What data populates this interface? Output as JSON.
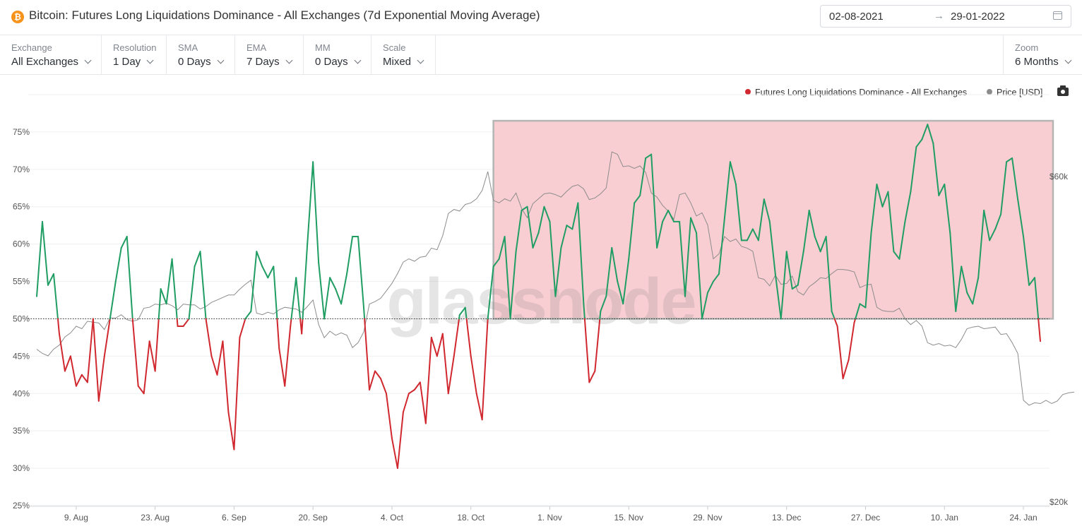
{
  "header": {
    "title": "Bitcoin: Futures Long Liquidations Dominance - All Exchanges (7d Exponential Moving Average)",
    "icon": "bitcoin-icon",
    "date_from": "02-08-2021",
    "date_arrow": "→",
    "date_to": "29-01-2022"
  },
  "toolbar": {
    "exchange": {
      "label": "Exchange",
      "value": "All Exchanges"
    },
    "resolution": {
      "label": "Resolution",
      "value": "1 Day"
    },
    "sma": {
      "label": "SMA",
      "value": "0 Days"
    },
    "ema": {
      "label": "EMA",
      "value": "7 Days"
    },
    "mm": {
      "label": "MM",
      "value": "0 Days"
    },
    "scale": {
      "label": "Scale",
      "value": "Mixed"
    },
    "zoom": {
      "label": "Zoom",
      "value": "6 Months"
    }
  },
  "legend": {
    "series1": "Futures Long Liquidations Dominance - All Exchanges",
    "series2": "Price [USD]"
  },
  "watermark": "glassnode",
  "colors": {
    "above": "#1f9d63",
    "below": "#d0282e",
    "price": "#8c8c8c",
    "highlight_fill": "#f8c9cd",
    "highlight_stroke": "#b5b5b5",
    "legend_red": "#d0282e",
    "legend_gray": "#8c8c8c"
  },
  "chart_data": {
    "type": "line",
    "start_date": "2021-08-02",
    "interval": "1 day",
    "threshold": 50,
    "y_left": {
      "min": 25,
      "max": 80,
      "ticks": [
        "25%",
        "30%",
        "35%",
        "40%",
        "45%",
        "50%",
        "55%",
        "60%",
        "65%",
        "70%",
        "75%"
      ]
    },
    "y_right": {
      "ticks": [
        "$20k",
        "$60k"
      ]
    },
    "x_ticks": [
      "9. Aug",
      "23. Aug",
      "6. Sep",
      "20. Sep",
      "4. Oct",
      "18. Oct",
      "1. Nov",
      "15. Nov",
      "29. Nov",
      "13. Dec",
      "27. Dec",
      "10. Jan",
      "24. Jan"
    ],
    "highlight_region": {
      "x_from": "2021-10-22",
      "x_to": "2022-01-28",
      "y_from": 50,
      "y_to": 76.5
    },
    "series": [
      {
        "name": "Futures Long Liquidations Dominance - All Exchanges",
        "values": [
          53,
          63,
          54.5,
          56,
          48,
          43,
          45,
          41,
          42.5,
          41.5,
          50,
          39,
          45,
          50,
          55,
          59.5,
          61,
          50,
          41,
          40,
          47,
          43,
          54,
          52,
          58,
          49,
          49,
          50,
          57,
          59,
          50,
          45,
          42.5,
          47,
          37.5,
          32.5,
          47.5,
          50,
          51,
          59,
          57,
          55.5,
          57,
          46,
          41,
          49,
          55.5,
          48,
          60,
          71,
          57.5,
          50,
          55.5,
          54,
          52,
          56,
          61,
          61,
          51.5,
          40.5,
          43,
          42,
          40,
          34,
          30,
          37.5,
          40,
          40.5,
          41.5,
          36,
          47.5,
          45,
          48,
          40,
          45,
          50.5,
          51.5,
          45,
          40,
          36.5,
          50,
          57,
          58,
          61,
          50,
          59,
          64.5,
          65,
          59.5,
          61.5,
          65,
          63,
          53,
          59.5,
          62.5,
          62,
          65.5,
          52,
          41.5,
          43,
          51,
          53,
          59.5,
          55,
          52,
          58,
          65.5,
          66.5,
          71.5,
          72,
          59.5,
          63,
          64.5,
          63,
          63,
          53,
          63.5,
          61.5,
          50,
          53.5,
          55,
          56,
          63.5,
          71,
          68,
          60.5,
          60.5,
          62,
          60.5,
          66,
          63,
          56,
          50,
          59,
          54,
          54.5,
          59,
          64.5,
          61,
          59,
          61,
          51,
          49,
          42,
          44.5,
          49.5,
          52,
          51.5,
          61.5,
          68,
          65,
          67,
          59,
          58,
          63,
          67,
          73,
          74,
          76,
          73.5,
          66.5,
          68,
          61.5,
          51,
          57,
          53.5,
          52,
          55.5,
          64.5,
          60.5,
          62,
          64,
          71,
          71.5,
          66,
          61,
          54.5,
          55.5,
          47
        ]
      },
      {
        "name": "Price [USD]",
        "values": [
          39000,
          38500,
          38200,
          39000,
          39500,
          40500,
          41000,
          41800,
          41500,
          42400,
          42300,
          42200,
          41400,
          42800,
          42800,
          43200,
          42600,
          42400,
          42600,
          44000,
          44100,
          44500,
          44400,
          44600,
          44300,
          43800,
          44500,
          44400,
          44400,
          43900,
          44200,
          44700,
          45000,
          45300,
          45600,
          45600,
          46300,
          46900,
          47400,
          43400,
          43200,
          43500,
          43300,
          43800,
          44100,
          44000,
          43900,
          43500,
          44200,
          45000,
          42000,
          40400,
          41200,
          40700,
          41000,
          40700,
          39200,
          39800,
          41100,
          44500,
          44800,
          45200,
          46100,
          47000,
          48200,
          49600,
          50000,
          49700,
          50200,
          50300,
          51300,
          51100,
          52800,
          55500,
          56000,
          55800,
          56600,
          56800,
          57300,
          58300,
          60600,
          57100,
          56800,
          57300,
          57000,
          58000,
          56100,
          55000,
          56700,
          57300,
          57900,
          58000,
          57800,
          57500,
          58200,
          58800,
          59000,
          58500,
          57200,
          57400,
          57900,
          58600,
          63000,
          62700,
          61200,
          61300,
          61000,
          61300,
          60500,
          58000,
          57500,
          56500,
          55800,
          54800,
          57800,
          58000,
          56800,
          55200,
          55600,
          54100,
          50000,
          50600,
          52700,
          52100,
          52400,
          51500,
          51300,
          50900,
          47700,
          47500,
          46700,
          48000,
          46900,
          47000,
          47900,
          46000,
          45600,
          46600,
          47100,
          47700,
          47600,
          48200,
          48700,
          48700,
          48600,
          48400,
          46500,
          46800,
          46900,
          44100,
          43700,
          43600,
          43600,
          44000,
          42700,
          42000,
          42500,
          41800,
          39800,
          39500,
          39700,
          39400,
          39500,
          39200,
          40200,
          41500,
          41700,
          41800,
          41500,
          41600,
          41700,
          40800,
          40900,
          39800,
          38500,
          32800,
          32200,
          32500,
          32400,
          32800,
          32400,
          32700,
          33500,
          33700,
          33800
        ],
        "axis": "right"
      }
    ]
  }
}
